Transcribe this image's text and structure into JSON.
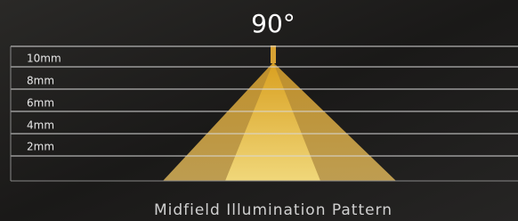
{
  "title": "90°",
  "depth_labels": [
    "10mm",
    "8mm",
    "6mm",
    "4mm",
    "2mm"
  ],
  "caption": "Midfield Illumination Pattern"
}
